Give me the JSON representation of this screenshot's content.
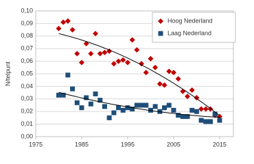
{
  "chart_data": {
    "type": "scatter",
    "y_label": "N/telpunt",
    "x": [
      1980,
      1981,
      1982,
      1983,
      1984,
      1985,
      1986,
      1987,
      1988,
      1989,
      1990,
      1991,
      1992,
      1993,
      1994,
      1995,
      1996,
      1997,
      1998,
      1999,
      2000,
      2001,
      2002,
      2003,
      2004,
      2005,
      2006,
      2007,
      2008,
      2009,
      2010,
      2011,
      2012,
      2013,
      2014,
      2015
    ],
    "series": [
      {
        "name": "Hoog Nederland",
        "color": "#c00000",
        "marker": "diamond",
        "values": [
          0.086,
          0.091,
          0.092,
          0.085,
          0.066,
          0.059,
          0.074,
          0.066,
          0.082,
          0.066,
          0.067,
          0.068,
          0.058,
          0.06,
          0.061,
          0.059,
          0.077,
          0.069,
          0.058,
          0.051,
          0.062,
          0.055,
          0.042,
          0.041,
          0.052,
          0.051,
          0.046,
          0.036,
          0.032,
          0.037,
          0.031,
          0.022,
          0.022,
          0.022,
          0.017,
          0.016
        ]
      },
      {
        "name": "Laag Nederland",
        "color": "#1f4e79",
        "marker": "square",
        "values": [
          0.033,
          0.033,
          0.049,
          0.038,
          0.027,
          0.023,
          0.031,
          0.026,
          0.034,
          0.029,
          0.024,
          0.015,
          0.019,
          0.023,
          0.021,
          0.023,
          0.022,
          0.025,
          0.025,
          0.025,
          0.021,
          0.024,
          0.02,
          0.023,
          0.025,
          0.021,
          0.017,
          0.016,
          0.016,
          0.021,
          0.02,
          0.013,
          0.012,
          0.012,
          0.018,
          0.013
        ]
      }
    ],
    "trendline": "polynomial",
    "xlim": [
      1975,
      2018
    ],
    "xticks": [
      1975,
      1985,
      1995,
      2005,
      2015
    ],
    "ylim": [
      0,
      0.1
    ],
    "yticks": [
      {
        "value": 0,
        "label": "0,00"
      },
      {
        "value": 0.01,
        "label": "0,01"
      },
      {
        "value": 0.02,
        "label": "0,02"
      },
      {
        "value": 0.03,
        "label": "0,03"
      },
      {
        "value": 0.04,
        "label": "0,04"
      },
      {
        "value": 0.05,
        "label": "0,05"
      },
      {
        "value": 0.06,
        "label": "0,06"
      },
      {
        "value": 0.07,
        "label": "0,07"
      },
      {
        "value": 0.08,
        "label": "0,08"
      },
      {
        "value": 0.09,
        "label": "0,09"
      },
      {
        "value": 0.1,
        "label": "0,10"
      }
    ],
    "grid": true,
    "legend": "top-right"
  }
}
